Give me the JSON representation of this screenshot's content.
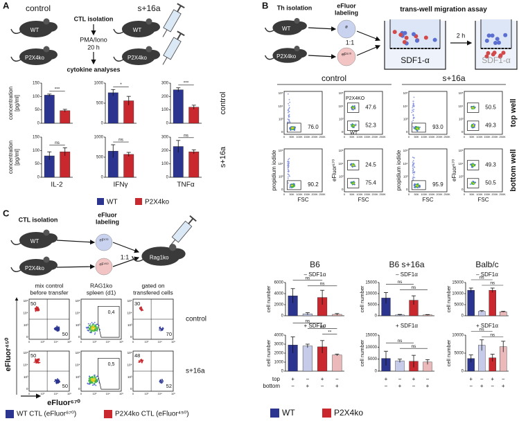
{
  "panel_a": {
    "label": "A",
    "left_title": "control",
    "right_title": "s+16a",
    "mice": [
      "WT",
      "P2X4ko"
    ],
    "steps": [
      "CTL isolation",
      "PMA/Iono",
      "20 h",
      "cytokine analyses"
    ],
    "y_label": [
      "concentration",
      "[pg/ml]"
    ],
    "row_labels": [
      "control",
      "s+16a"
    ],
    "charts": [
      {
        "x_label": "IL-2",
        "ylim": [
          0,
          150
        ],
        "yticks": [
          0,
          50,
          100,
          150
        ],
        "rows": [
          {
            "values": [
              105,
              47
            ],
            "errors": [
              4,
              5
            ],
            "sig": "***"
          },
          {
            "values": [
              80,
              95
            ],
            "errors": [
              15,
              15
            ],
            "sig": "ns"
          }
        ]
      },
      {
        "x_label": "IFNγ",
        "ylim": [
          0,
          1000
        ],
        "yticks": [
          0,
          500,
          1000
        ],
        "rows": [
          {
            "values": [
              760,
              560
            ],
            "errors": [
              80,
              110
            ],
            "sig": "*"
          },
          {
            "values": [
              650,
              570
            ],
            "errors": [
              160,
              50
            ],
            "sig": "ns"
          }
        ]
      },
      {
        "x_label": "TNFα",
        "ylim": [
          0,
          300
        ],
        "yticks": [
          0,
          100,
          200,
          300
        ],
        "rows": [
          {
            "values": [
              250,
              120
            ],
            "errors": [
              15,
              15
            ],
            "sig": "***"
          },
          {
            "values": [
              230,
              190
            ],
            "errors": [
              45,
              15
            ],
            "sig": "ns"
          }
        ]
      }
    ],
    "legend": [
      {
        "name": "WT",
        "color": "#2b3590"
      },
      {
        "name": "P2X4ko",
        "color": "#c8282e"
      }
    ]
  },
  "panel_b": {
    "label": "B",
    "step_isolation": "Th isolation",
    "step_labeling": [
      "eFluor",
      "labeling"
    ],
    "mice": [
      "WT",
      "P2X4ko"
    ],
    "dye_labels": [
      "ø",
      "eF⁶⁷⁰"
    ],
    "ratio": "1:1",
    "assay_title": "trans-well migration assay",
    "time": "2 h",
    "chemokine": "SDF1-α",
    "group_labels": [
      "control",
      "s+16a"
    ],
    "row_labels": [
      "top well",
      "bottom well"
    ],
    "axis_labels": {
      "pi": "propidium iodide",
      "ef": "eFluor⁶⁷⁰",
      "fsc": "FSC"
    },
    "yticks": [
      "10⁵",
      "10⁴",
      "10³",
      "0"
    ],
    "xticks": [
      "0",
      "50K",
      "100K",
      "150K",
      "200K",
      "250K"
    ],
    "rows": [
      {
        "plots": [
          {
            "gates": [
              "76.0"
            ]
          },
          {
            "gates": [
              "47.6",
              "52.3"
            ],
            "annotations": [
              "P2X4KO",
              "WT"
            ]
          },
          {
            "gates": [
              "93.0"
            ]
          },
          {
            "gates": [
              "50.5",
              "49.3"
            ]
          }
        ]
      },
      {
        "plots": [
          {
            "gates": [
              "90.2"
            ]
          },
          {
            "gates": [
              "24.5",
              "75.4"
            ]
          },
          {
            "gates": [
              "95.9"
            ]
          },
          {
            "gates": [
              "49.3",
              "50.5"
            ]
          }
        ]
      }
    ]
  },
  "panel_c": {
    "label": "C",
    "step_isolation": "CTL isolation",
    "step_labeling": [
      "eFluor",
      "labeling"
    ],
    "mice": [
      "WT",
      "P2X4ko"
    ],
    "dye_labels": [
      "eF⁶⁷⁰",
      "eF⁴⁵⁰"
    ],
    "ratio": "1:1",
    "recipient": "Rag1ko",
    "flow_headers": [
      [
        "mix control",
        "before transfer"
      ],
      [
        "RAG1ko",
        "spleen (d1)"
      ],
      [
        "gated on",
        "transfered cells"
      ]
    ],
    "flow_rows": [
      {
        "label": "control",
        "plots": [
          {
            "numbers": [
              "50",
              "50"
            ]
          },
          {
            "numbers": [
              "0,4"
            ]
          },
          {
            "numbers": [
              "30",
              "70"
            ]
          }
        ]
      },
      {
        "label": "s+16a",
        "plots": [
          {
            "numbers": [
              "50",
              "50"
            ]
          },
          {
            "numbers": [
              "0,5"
            ]
          },
          {
            "numbers": [
              "48",
              "52"
            ]
          }
        ]
      }
    ],
    "flow_axis_labels": {
      "y": "eFluor⁴⁵⁰",
      "x": "eFluor⁶⁷⁰"
    },
    "flow_yticks": [
      "10⁵",
      "10⁴",
      "10³",
      "0"
    ],
    "flow_xticks": [
      "0",
      "10³",
      "10⁴",
      "10⁵"
    ],
    "flow_legend": [
      {
        "name": "WT CTL (eFluor⁶⁷⁰)",
        "color": "#2b3590"
      },
      {
        "name": "P2X4ko CTL (eFluor⁴⁵⁰)",
        "color": "#c8282e"
      }
    ],
    "bar_colors": [
      "#2b3590",
      "#c5cbe9",
      "#c8282e",
      "#ebb9b9"
    ],
    "condition_labels": [
      "– SDF1α",
      "+ SDF1α"
    ],
    "y_label": "cell number",
    "bar_columns": [
      {
        "title": "B6",
        "conditions": [
          {
            "ylim": [
              0,
              6000
            ],
            "yticks": [
              0,
              2000,
              4000,
              6000
            ],
            "values": [
              3600,
              350,
              3300,
              250
            ],
            "errors": [
              1300,
              200,
              1300,
              150
            ],
            "sig": [
              "ns",
              "ns"
            ]
          },
          {
            "ylim": [
              0,
              4000
            ],
            "yticks": [
              0,
              1000,
              2000,
              3000,
              4000
            ],
            "values": [
              2900,
              2800,
              2700,
              1800
            ],
            "errors": [
              900,
              200,
              700,
              100
            ],
            "sig": [
              "ns",
              "ns",
              "**"
            ]
          }
        ]
      },
      {
        "title": "B6 s+16a",
        "conditions": [
          {
            "ylim": [
              0,
              15000
            ],
            "yticks": [
              0,
              5000,
              10000,
              15000
            ],
            "values": [
              8000,
              400,
              7000,
              400
            ],
            "errors": [
              2500,
              200,
              2000,
              150
            ],
            "sig": [
              "ns",
              "ns"
            ]
          },
          {
            "ylim": [
              0,
              15000
            ],
            "yticks": [
              0,
              5000,
              10000,
              15000
            ],
            "values": [
              5300,
              4300,
              4100,
              3800
            ],
            "errors": [
              3000,
              700,
              2500,
              1000
            ],
            "sig": [
              "ns",
              "ns"
            ]
          }
        ]
      },
      {
        "title": "Balb/c",
        "conditions": [
          {
            "ylim": [
              0,
              15000
            ],
            "yticks": [
              0,
              5000,
              10000,
              15000
            ],
            "values": [
              11500,
              2000,
              11500,
              1800
            ],
            "errors": [
              1000,
              300,
              1000,
              200
            ],
            "sig": [
              "ns",
              "ns"
            ]
          },
          {
            "ylim": [
              0,
              10000
            ],
            "yticks": [
              0,
              5000,
              10000
            ],
            "values": [
              3500,
              7200,
              3700,
              6800
            ],
            "errors": [
              1000,
              1500,
              1000,
              1500
            ],
            "sig": [
              "ns",
              "ns"
            ]
          }
        ]
      }
    ],
    "row_labels": [
      "top",
      "bottom"
    ],
    "top_signs": [
      "+",
      "−",
      "+",
      "−"
    ],
    "bottom_signs": [
      "−",
      "+",
      "−",
      "+"
    ],
    "legend": [
      {
        "name": "WT",
        "color": "#2b3590"
      },
      {
        "name": "P2X4ko",
        "color": "#c8282e"
      }
    ]
  }
}
